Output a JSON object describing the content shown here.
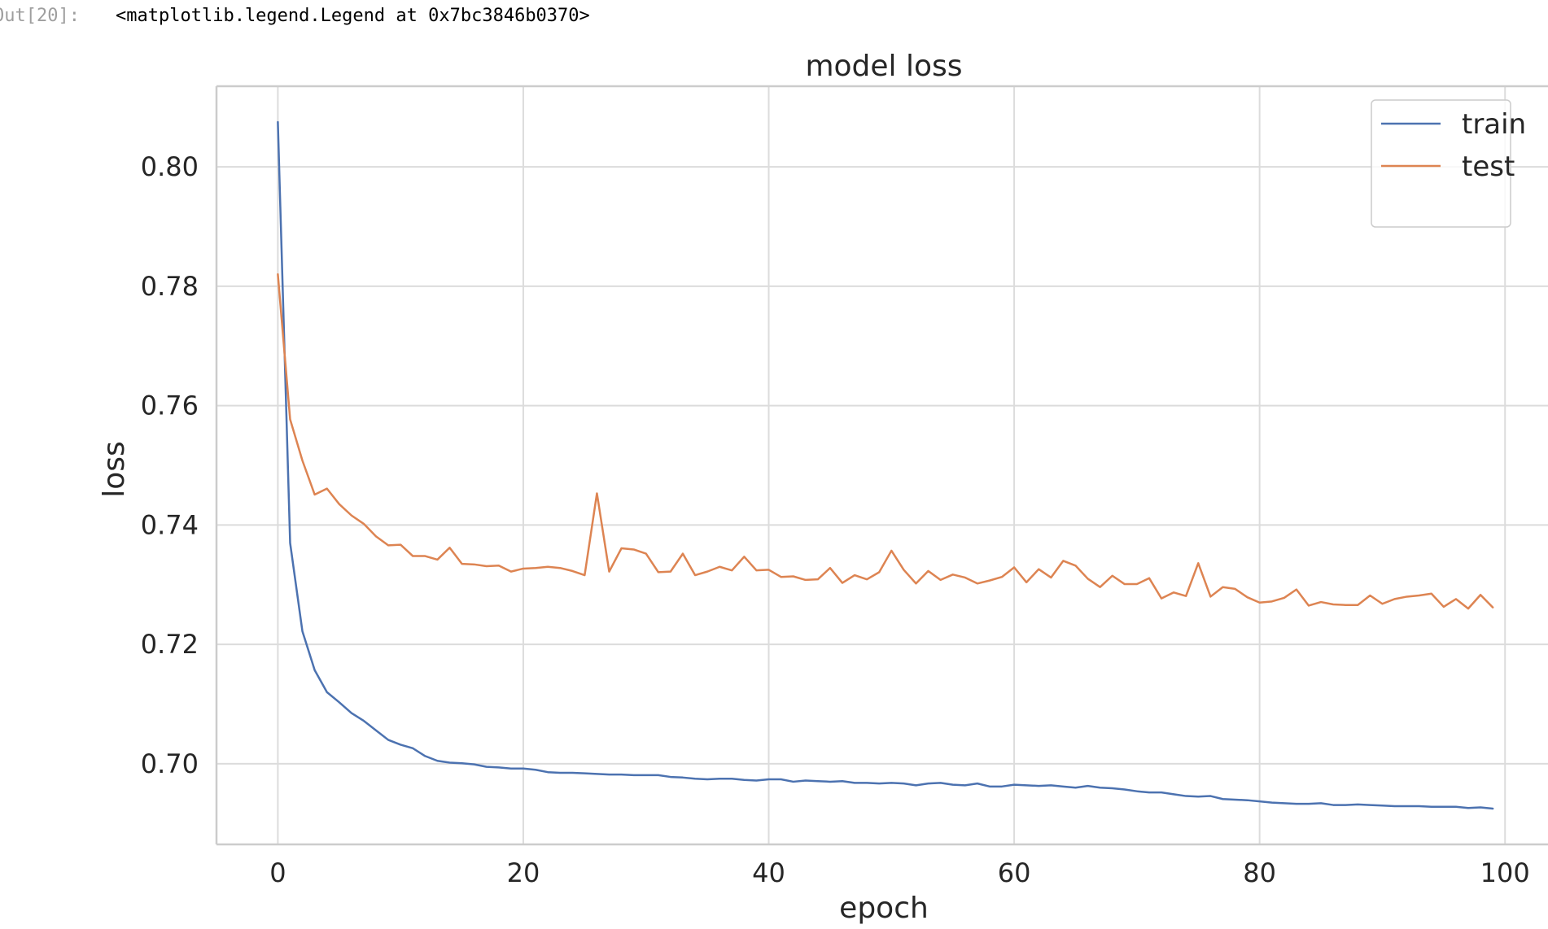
{
  "output": {
    "prompt": "Out[20]:",
    "text": "<matplotlib.legend.Legend at 0x7bc3846b0370>"
  },
  "chart_data": {
    "type": "line",
    "title": "model loss",
    "xlabel": "epoch",
    "ylabel": "loss",
    "xlim": [
      -5,
      103.5
    ],
    "ylim": [
      0.6865,
      0.8135
    ],
    "xticks": [
      0,
      20,
      40,
      60,
      80,
      100
    ],
    "yticks": [
      0.7,
      0.72,
      0.74,
      0.76,
      0.78,
      0.8
    ],
    "xtick_labels": [
      "0",
      "20",
      "40",
      "60",
      "80",
      "100"
    ],
    "ytick_labels": [
      "0.70",
      "0.72",
      "0.74",
      "0.76",
      "0.78",
      "0.80"
    ],
    "grid": true,
    "legend": "top-right",
    "x": [
      0,
      1,
      2,
      3,
      4,
      5,
      6,
      7,
      8,
      9,
      10,
      11,
      12,
      13,
      14,
      15,
      16,
      17,
      18,
      19,
      20,
      21,
      22,
      23,
      24,
      25,
      26,
      27,
      28,
      29,
      30,
      31,
      32,
      33,
      34,
      35,
      36,
      37,
      38,
      39,
      40,
      41,
      42,
      43,
      44,
      45,
      46,
      47,
      48,
      49,
      50,
      51,
      52,
      53,
      54,
      55,
      56,
      57,
      58,
      59,
      60,
      61,
      62,
      63,
      64,
      65,
      66,
      67,
      68,
      69,
      70,
      71,
      72,
      73,
      74,
      75,
      76,
      77,
      78,
      79,
      80,
      81,
      82,
      83,
      84,
      85,
      86,
      87,
      88,
      89,
      90,
      91,
      92,
      93,
      94,
      95,
      96,
      97,
      98,
      99
    ],
    "series": [
      {
        "name": "train",
        "color": "#4c72b0",
        "values": [
          0.8075,
          0.737,
          0.7222,
          0.7157,
          0.712,
          0.7103,
          0.7085,
          0.7072,
          0.7056,
          0.704,
          0.7032,
          0.7026,
          0.7013,
          0.7005,
          0.7002,
          0.7001,
          0.6999,
          0.6995,
          0.6994,
          0.6992,
          0.6992,
          0.699,
          0.6986,
          0.6985,
          0.6985,
          0.6984,
          0.6983,
          0.6982,
          0.6982,
          0.6981,
          0.6981,
          0.6981,
          0.6978,
          0.6977,
          0.6975,
          0.6974,
          0.6975,
          0.6975,
          0.6973,
          0.6972,
          0.6974,
          0.6974,
          0.697,
          0.6972,
          0.6971,
          0.697,
          0.6971,
          0.6968,
          0.6968,
          0.6967,
          0.6968,
          0.6967,
          0.6964,
          0.6967,
          0.6968,
          0.6965,
          0.6964,
          0.6967,
          0.6962,
          0.6962,
          0.6965,
          0.6964,
          0.6963,
          0.6964,
          0.6962,
          0.696,
          0.6963,
          0.696,
          0.6959,
          0.6957,
          0.6954,
          0.6952,
          0.6952,
          0.6949,
          0.6946,
          0.6945,
          0.6946,
          0.6941,
          0.694,
          0.6939,
          0.6937,
          0.6935,
          0.6934,
          0.6933,
          0.6933,
          0.6934,
          0.6931,
          0.6931,
          0.6932,
          0.6931,
          0.693,
          0.6929,
          0.6929,
          0.6929,
          0.6928,
          0.6928,
          0.6928,
          0.6926,
          0.6927,
          0.6925
        ]
      },
      {
        "name": "test",
        "color": "#dd8452",
        "values": [
          0.782,
          0.7577,
          0.7508,
          0.7451,
          0.7461,
          0.7435,
          0.7416,
          0.7402,
          0.7381,
          0.7366,
          0.7367,
          0.7348,
          0.7348,
          0.7342,
          0.7362,
          0.7335,
          0.7334,
          0.7331,
          0.7332,
          0.7322,
          0.7327,
          0.7328,
          0.733,
          0.7328,
          0.7323,
          0.7316,
          0.7453,
          0.7322,
          0.7361,
          0.7359,
          0.7352,
          0.7321,
          0.7322,
          0.7352,
          0.7316,
          0.7322,
          0.733,
          0.7324,
          0.7347,
          0.7324,
          0.7325,
          0.7313,
          0.7314,
          0.7308,
          0.7309,
          0.7328,
          0.7303,
          0.7316,
          0.7309,
          0.7321,
          0.7357,
          0.7325,
          0.7302,
          0.7323,
          0.7308,
          0.7317,
          0.7312,
          0.7302,
          0.7307,
          0.7313,
          0.7329,
          0.7304,
          0.7326,
          0.7312,
          0.734,
          0.7332,
          0.731,
          0.7296,
          0.7315,
          0.7301,
          0.7301,
          0.7311,
          0.7277,
          0.7287,
          0.7281,
          0.7336,
          0.728,
          0.7296,
          0.7293,
          0.7279,
          0.727,
          0.7272,
          0.7278,
          0.7292,
          0.7265,
          0.7271,
          0.7267,
          0.7266,
          0.7266,
          0.7282,
          0.7268,
          0.7276,
          0.728,
          0.7282,
          0.7285,
          0.7263,
          0.7276,
          0.726,
          0.7283,
          0.7262
        ]
      }
    ]
  }
}
